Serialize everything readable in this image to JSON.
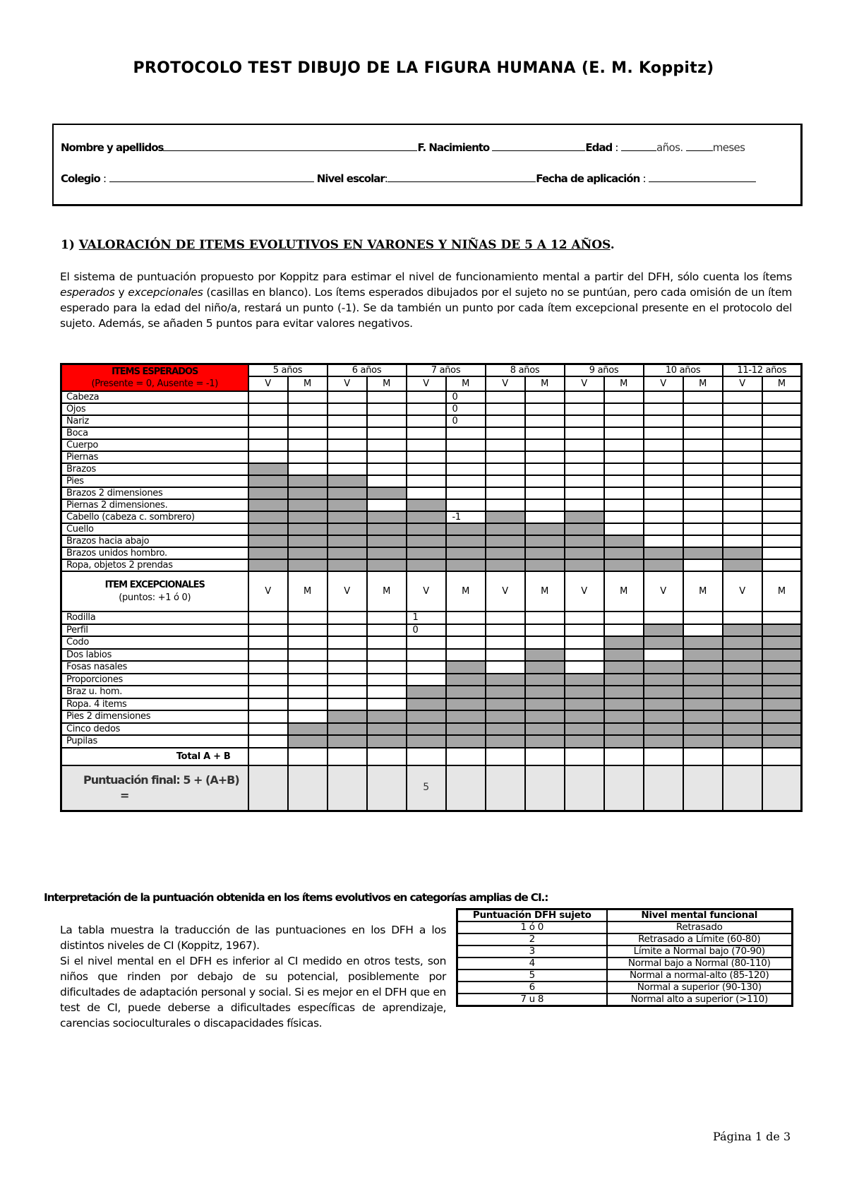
{
  "title": "PROTOCOLO TEST DIBUJO DE LA FIGURA HUMANA (E. M.  Koppitz)",
  "info": {
    "name_label": "Nombre y apellidos",
    "birth_label": "F. Nacimiento",
    "age_label": "Edad",
    "years_label": "años.",
    "months_label": "meses",
    "school_label": "Colegio",
    "level_label": "Nivel escolar",
    "date_label": "Fecha de aplicación"
  },
  "section1": {
    "number": "1)",
    "heading": "VALORACIÓN DE ITEMS EVOLUTIVOS EN VARONES Y NIÑAS DE 5 A 12 AÑOS"
  },
  "intro": {
    "p1": "El sistema de puntuación propuesto por Koppitz para estimar el nivel de funcionamiento mental a partir del DFH, sólo cuenta los ítems ",
    "esperados": "esperados",
    "y": " y ",
    "excepcionales": "excepcionales",
    "p2": " (casillas en blanco). Los ítems esperados dibujados por el sujeto no se puntúan, pero cada omisión de un ítem esperado para la edad del niño/a, restará un punto (-1). Se da también un punto por cada ítem excepcional presente en el protocolo del sujeto. Además, se añaden 5 puntos para evitar valores negativos."
  },
  "main_table": {
    "expected_header": "ITEMS ESPERADOS",
    "expected_sub": "(Presente = 0, Ausente = -1)",
    "ages": [
      "5 años",
      "6 años",
      "7 años",
      "8 años",
      "9 años",
      "10 años",
      "11-12 años"
    ],
    "sex": [
      "V",
      "M"
    ],
    "expected_rows": [
      {
        "label": "Cabeza",
        "shaded": [],
        "values": {
          "5": "0"
        }
      },
      {
        "label": "Ojos",
        "shaded": [],
        "values": {
          "5": "0"
        }
      },
      {
        "label": "Nariz",
        "shaded": [],
        "values": {
          "5": "0"
        }
      },
      {
        "label": "Boca",
        "shaded": [],
        "values": {}
      },
      {
        "label": "Cuerpo",
        "shaded": [],
        "values": {}
      },
      {
        "label": "Piernas",
        "shaded": [],
        "values": {}
      },
      {
        "label": "Brazos",
        "shaded": [
          0
        ],
        "values": {}
      },
      {
        "label": "Pies",
        "shaded": [
          0,
          1,
          2
        ],
        "values": {}
      },
      {
        "label": "Brazos 2 dimensiones",
        "shaded": [
          0,
          1,
          2,
          3
        ],
        "values": {}
      },
      {
        "label": "Piernas 2 dimensiones.",
        "shaded": [
          0,
          1,
          2,
          4
        ],
        "values": {}
      },
      {
        "label": "Cabello (cabeza c. sombrero)",
        "shaded": [
          0,
          1,
          2,
          3,
          4,
          6,
          8
        ],
        "values": {
          "5": "-1"
        }
      },
      {
        "label": "Cuello",
        "shaded": [
          0,
          1,
          2,
          3,
          4,
          5,
          6,
          7,
          8
        ],
        "values": {}
      },
      {
        "label": "Brazos hacia abajo",
        "shaded": [
          0,
          1,
          2,
          3,
          4,
          5,
          6,
          7,
          8,
          9
        ],
        "values": {}
      },
      {
        "label": "Brazos unidos hombro.",
        "shaded": [
          0,
          1,
          2,
          3,
          4,
          5,
          6,
          7,
          8,
          9,
          10,
          11,
          12
        ],
        "values": {}
      },
      {
        "label": "Ropa, objetos 2 prendas",
        "shaded": [
          0,
          1,
          2,
          3,
          4,
          5,
          6,
          7,
          8,
          9,
          10,
          12
        ],
        "values": {}
      }
    ],
    "exceptional_header": "ITEM EXCEPCIONALES",
    "exceptional_sub": "(puntos: +1 ó 0)",
    "exceptional_rows": [
      {
        "label": "Rodilla",
        "shaded": [],
        "values": {
          "4": "1"
        }
      },
      {
        "label": "Perfil",
        "shaded": [
          10,
          12,
          13
        ],
        "values": {
          "4": "0"
        }
      },
      {
        "label": "Codo",
        "shaded": [
          9,
          10,
          11,
          12,
          13
        ],
        "values": {}
      },
      {
        "label": "Dos labios",
        "shaded": [
          7,
          9,
          11,
          12,
          13
        ],
        "values": {}
      },
      {
        "label": "Fosas nasales",
        "shaded": [
          5,
          7,
          9,
          10,
          11,
          12,
          13
        ],
        "values": {}
      },
      {
        "label": "Proporciones",
        "shaded": [
          5,
          6,
          7,
          8,
          9,
          10,
          11,
          12,
          13
        ],
        "values": {}
      },
      {
        "label": "Braz u. hom.",
        "shaded": [
          4,
          5,
          6,
          7,
          8,
          9,
          10,
          11,
          12,
          13
        ],
        "values": {}
      },
      {
        "label": "Ropa. 4 items",
        "shaded": [
          4,
          5,
          6,
          7,
          8,
          9,
          10,
          11,
          12,
          13
        ],
        "values": {}
      },
      {
        "label": "Pies 2 dimensiones",
        "shaded": [
          2,
          3,
          4,
          5,
          6,
          7,
          8,
          9,
          10,
          11,
          12,
          13
        ],
        "values": {}
      },
      {
        "label": "Cinco dedos",
        "shaded": [
          1,
          2,
          3,
          4,
          5,
          6,
          7,
          8,
          9,
          10,
          11,
          12,
          13
        ],
        "values": {}
      },
      {
        "label": "Pupilas",
        "shaded": [
          1,
          2,
          3,
          4,
          5,
          6,
          7,
          8,
          9,
          10,
          11,
          12,
          13
        ],
        "values": {}
      }
    ],
    "total_label": "Total A + B",
    "final_label": "Puntuación final: 5 + (A+B)",
    "final_eq": "=",
    "final_values": {
      "4": "5"
    }
  },
  "interpretation": {
    "heading": "Interpretación de la puntuación obtenida en los ítems evolutivos en categorías amplias de CI.:",
    "text": "La tabla muestra la traducción de las puntuaciones en los DFH a los distintos niveles de CI (Koppitz, 1967).",
    "text2": "Si el nivel mental en el DFH es inferior al CI medido en otros tests, son niños que rinden por debajo de su potencial, posiblemente por dificultades de adaptación personal y social. Si es mejor en el DFH que en test de CI, puede deberse a dificultades específicas de aprendizaje, carencias socioculturales o discapacidades físicas.",
    "table_headers": [
      "Puntuación DFH sujeto",
      "Nivel mental funcional"
    ],
    "table_rows": [
      [
        "1 ó 0",
        "Retrasado"
      ],
      [
        "2",
        "Retrasado a Límite (60-80)"
      ],
      [
        "3",
        "Límite a Normal bajo (70-90)"
      ],
      [
        "4",
        "Normal bajo a Normal (80-110)"
      ],
      [
        "5",
        "Normal a normal-alto (85-120)"
      ],
      [
        "6",
        "Normal a superior (90-130)"
      ],
      [
        "7 u 8",
        "Normal alto a superior (>110)"
      ]
    ]
  },
  "footer": "Página 1 de 3",
  "colors": {
    "header_red": "#ff0000",
    "shaded_gray": "#a6a6a6",
    "final_row_gray": "#e6e6e6"
  }
}
